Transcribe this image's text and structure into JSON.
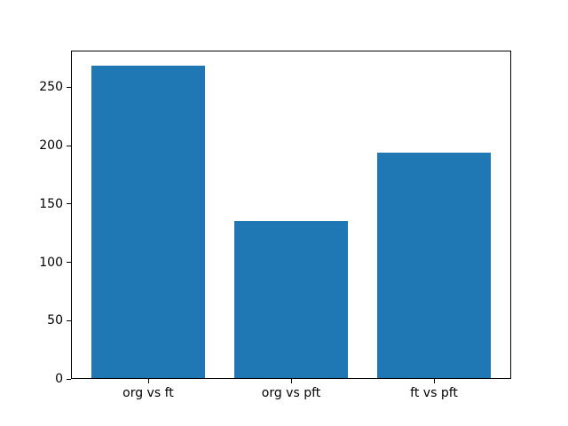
{
  "figure": {
    "background": "#ffffff",
    "frame_color": "#000000",
    "text_color": "#000000"
  },
  "chart_data": {
    "type": "bar",
    "categories": [
      "org vs ft",
      "org vs pft",
      "ft vs pft"
    ],
    "values": [
      268,
      135,
      193
    ],
    "title": "",
    "xlabel": "",
    "ylabel": "",
    "ylim": [
      0,
      281.4
    ],
    "xlim": [
      -0.54,
      2.54
    ],
    "yticks": [
      0,
      50,
      100,
      150,
      200,
      250
    ],
    "bar_color": "#1f77b4",
    "bar_width_fraction": 0.8,
    "grid": false,
    "legend": null
  }
}
